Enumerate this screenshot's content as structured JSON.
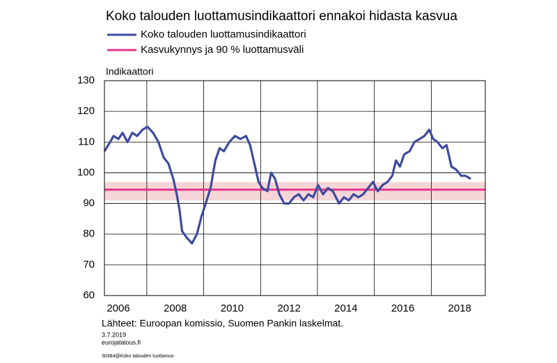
{
  "chart_data": {
    "type": "line",
    "title": "Koko talouden luottamusindikaattori ennakoi hidasta kasvua",
    "y_label": "Indikaattori",
    "source": "Lähteet: Euroopan komissio, Suomen Pankin laskelmat.",
    "date": "3.7.2019",
    "site": "eurojatalous.fi",
    "code": "30384@Koko talouden luottamus",
    "xlim": [
      2005.51,
      2018.9
    ],
    "xticks": [
      2006,
      2008,
      2010,
      2012,
      2014,
      2016,
      2018
    ],
    "ylim": [
      60,
      130
    ],
    "yticks": [
      60,
      70,
      80,
      90,
      100,
      110,
      120,
      130
    ],
    "grid": true,
    "x": [
      2005.51,
      2005.71,
      2005.83,
      2006.0,
      2006.15,
      2006.32,
      2006.49,
      2006.66,
      2006.85,
      2007.02,
      2007.22,
      2007.41,
      2007.59,
      2007.76,
      2007.93,
      2008.05,
      2008.15,
      2008.24,
      2008.39,
      2008.59,
      2008.76,
      2008.93,
      2009.07,
      2009.24,
      2009.41,
      2009.56,
      2009.71,
      2009.9,
      2010.1,
      2010.29,
      2010.49,
      2010.63,
      2010.78,
      2010.93,
      2011.07,
      2011.24,
      2011.37,
      2011.51,
      2011.66,
      2011.83,
      2012.0,
      2012.17,
      2012.34,
      2012.51,
      2012.68,
      2012.85,
      2013.02,
      2013.2,
      2013.37,
      2013.54,
      2013.76,
      2013.93,
      2014.1,
      2014.27,
      2014.44,
      2014.61,
      2014.78,
      2014.95,
      2015.12,
      2015.29,
      2015.46,
      2015.63,
      2015.76,
      2015.9,
      2016.05,
      2016.24,
      2016.41,
      2016.59,
      2016.76,
      2016.93,
      2017.07,
      2017.22,
      2017.39,
      2017.54,
      2017.71,
      2017.88,
      2018.05,
      2018.2,
      2018.39
    ],
    "series": [
      {
        "name": "Koko talouden luottamusindikaattori",
        "color": "#3c4a9e",
        "values": [
          107,
          110,
          112,
          111,
          113,
          110,
          113,
          112,
          114,
          115,
          113,
          110,
          105,
          103,
          98,
          93,
          88,
          81,
          79,
          77,
          80,
          86,
          90,
          95,
          104,
          108,
          107,
          110,
          112,
          111,
          112,
          109,
          103,
          97,
          95,
          94,
          100,
          98,
          93,
          90,
          90,
          92,
          93,
          91,
          93,
          92,
          96,
          93,
          95,
          94,
          90,
          92,
          91,
          93,
          92,
          93,
          95,
          97,
          94,
          96,
          97,
          99,
          104,
          102,
          106,
          107,
          110,
          111,
          112,
          114,
          111,
          110,
          108,
          109,
          102,
          101,
          99,
          99,
          98
        ]
      }
    ],
    "threshold": {
      "name": "Kasvukynnys ja 90 % luottamusväli",
      "color": "#e5338b",
      "band_color": "#f5d5d8",
      "value": 94.5,
      "band": [
        91,
        97
      ]
    }
  }
}
